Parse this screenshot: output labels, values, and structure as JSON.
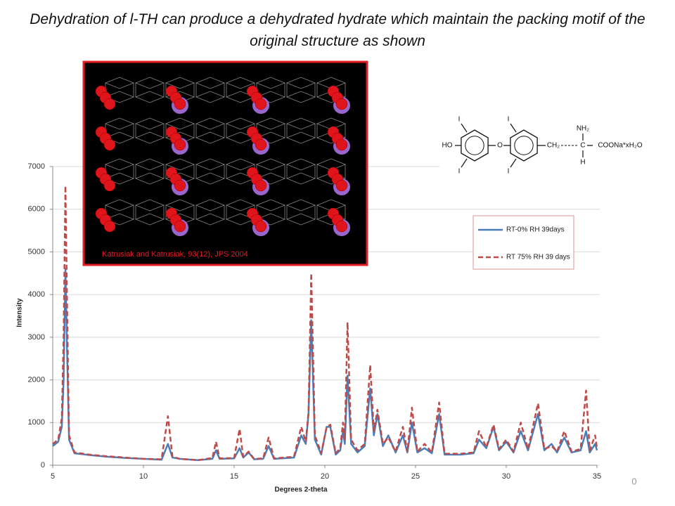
{
  "title": "Dehydration of l-TH can produce a dehydrated hydrate which maintain the packing motif of the original structure as shown",
  "chart_data": {
    "type": "line",
    "xlabel": "Degrees 2-theta",
    "ylabel": "Intensity",
    "x": [
      5,
      5.3,
      5.5,
      5.6,
      5.7,
      5.8,
      5.9,
      6.2,
      7,
      8,
      9,
      10,
      11,
      11.35,
      11.6,
      12,
      13,
      13.8,
      14.0,
      14.2,
      15.0,
      15.3,
      15.5,
      15.8,
      16.1,
      16.6,
      16.9,
      17.2,
      18.3,
      18.7,
      18.95,
      19.1,
      19.25,
      19.45,
      19.8,
      20.1,
      20.3,
      20.6,
      20.85,
      21.0,
      21.1,
      21.25,
      21.45,
      21.8,
      22.2,
      22.5,
      22.7,
      22.9,
      23.2,
      23.5,
      23.9,
      24.3,
      24.55,
      24.8,
      25.1,
      25.5,
      25.9,
      26.3,
      26.6,
      27.5,
      28.2,
      28.5,
      28.9,
      29.3,
      29.6,
      30.0,
      30.4,
      30.8,
      31.2,
      31.75,
      32.1,
      32.5,
      32.8,
      33.2,
      33.6,
      34.1,
      34.4,
      34.6,
      34.9,
      35
    ],
    "series": [
      {
        "name": "RT-0% RH 39days",
        "color": "#4a7ebb",
        "dashed": false,
        "values": [
          450,
          550,
          900,
          2000,
          4600,
          2500,
          600,
          280,
          240,
          200,
          170,
          150,
          130,
          500,
          180,
          150,
          120,
          150,
          350,
          150,
          160,
          400,
          180,
          300,
          140,
          150,
          450,
          150,
          180,
          700,
          500,
          1200,
          3400,
          600,
          250,
          900,
          900,
          250,
          350,
          800,
          500,
          2100,
          500,
          300,
          450,
          1800,
          700,
          1200,
          450,
          700,
          300,
          700,
          300,
          1000,
          300,
          400,
          280,
          1200,
          250,
          250,
          280,
          600,
          400,
          900,
          350,
          550,
          300,
          800,
          350,
          1200,
          350,
          500,
          300,
          650,
          300,
          350,
          800,
          300,
          500,
          350
        ]
      },
      {
        "name": "RT 75% RH 39 days",
        "color": "#be4b48",
        "dashed": true,
        "values": [
          500,
          600,
          1100,
          3000,
          6550,
          3500,
          700,
          300,
          250,
          210,
          180,
          150,
          140,
          1150,
          200,
          150,
          120,
          170,
          550,
          160,
          170,
          850,
          200,
          320,
          150,
          160,
          650,
          160,
          200,
          900,
          550,
          1250,
          4500,
          700,
          280,
          900,
          950,
          280,
          400,
          1000,
          600,
          3350,
          600,
          350,
          500,
          2350,
          800,
          1300,
          500,
          650,
          320,
          900,
          320,
          1350,
          320,
          500,
          300,
          1470,
          270,
          270,
          300,
          800,
          420,
          950,
          380,
          600,
          320,
          1000,
          380,
          1450,
          380,
          450,
          320,
          800,
          320,
          380,
          1750,
          350,
          700,
          400
        ]
      }
    ],
    "xlim": [
      5,
      35
    ],
    "xticks": [
      5,
      10,
      15,
      20,
      25,
      30,
      35
    ],
    "ylim": [
      0,
      7000
    ],
    "yticks": [
      0,
      1000,
      2000,
      3000,
      4000,
      5000,
      6000,
      7000
    ],
    "grid": true,
    "legend": "right"
  },
  "image_caption": "Katrusiak and Katrusiak, 93(12), JPS 2004",
  "structure": {
    "labels": [
      "HO",
      "I",
      "I",
      "O",
      "I",
      "I",
      "CH₂",
      "NH₂",
      "C",
      "H",
      "COONa*xH₂O"
    ]
  },
  "page_number": "0"
}
